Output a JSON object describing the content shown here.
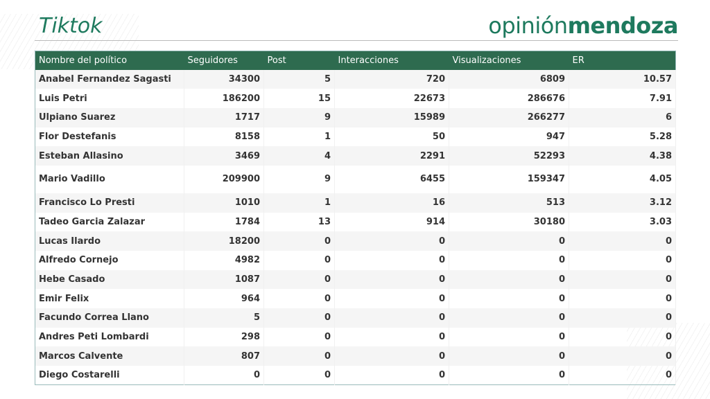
{
  "title": "Tiktok",
  "logo": {
    "light": "opinión",
    "bold": "mendoza"
  },
  "colors": {
    "header": "#2e6b4f",
    "accent": "#1e7a5e"
  },
  "columns": [
    "Nombre del político",
    "Seguidores",
    "Post",
    "Interacciones",
    "Visualizaciones",
    "ER"
  ],
  "rows": [
    [
      "Anabel Fernandez Sagasti",
      "34300",
      "5",
      "720",
      "6809",
      "10.57"
    ],
    [
      "Luis Petri",
      "186200",
      "15",
      "22673",
      "286676",
      "7.91"
    ],
    [
      "Ulpiano Suarez",
      "1717",
      "9",
      "15989",
      "266277",
      "6"
    ],
    [
      "Flor Destefanis",
      "8158",
      "1",
      "50",
      "947",
      "5.28"
    ],
    [
      "Esteban Allasino",
      "3469",
      "4",
      "2291",
      "52293",
      "4.38"
    ],
    [
      "Mario Vadillo",
      "209900",
      "9",
      "6455",
      "159347",
      "4.05"
    ],
    [
      "Francisco Lo Presti",
      "1010",
      "1",
      "16",
      "513",
      "3.12"
    ],
    [
      "Tadeo Garcia Zalazar",
      "1784",
      "13",
      "914",
      "30180",
      "3.03"
    ],
    [
      "Lucas Ilardo",
      "18200",
      "0",
      "0",
      "0",
      "0"
    ],
    [
      "Alfredo Cornejo",
      "4982",
      "0",
      "0",
      "0",
      "0"
    ],
    [
      "Hebe Casado",
      "1087",
      "0",
      "0",
      "0",
      "0"
    ],
    [
      "Emir Felix",
      "964",
      "0",
      "0",
      "0",
      "0"
    ],
    [
      "Facundo Correa Llano",
      "5",
      "0",
      "0",
      "0",
      "0"
    ],
    [
      "Andres Peti Lombardi",
      "298",
      "0",
      "0",
      "0",
      "0"
    ],
    [
      "Marcos Calvente",
      "807",
      "0",
      "0",
      "0",
      "0"
    ],
    [
      "Diego Costarelli",
      "0",
      "0",
      "0",
      "0",
      "0"
    ]
  ]
}
